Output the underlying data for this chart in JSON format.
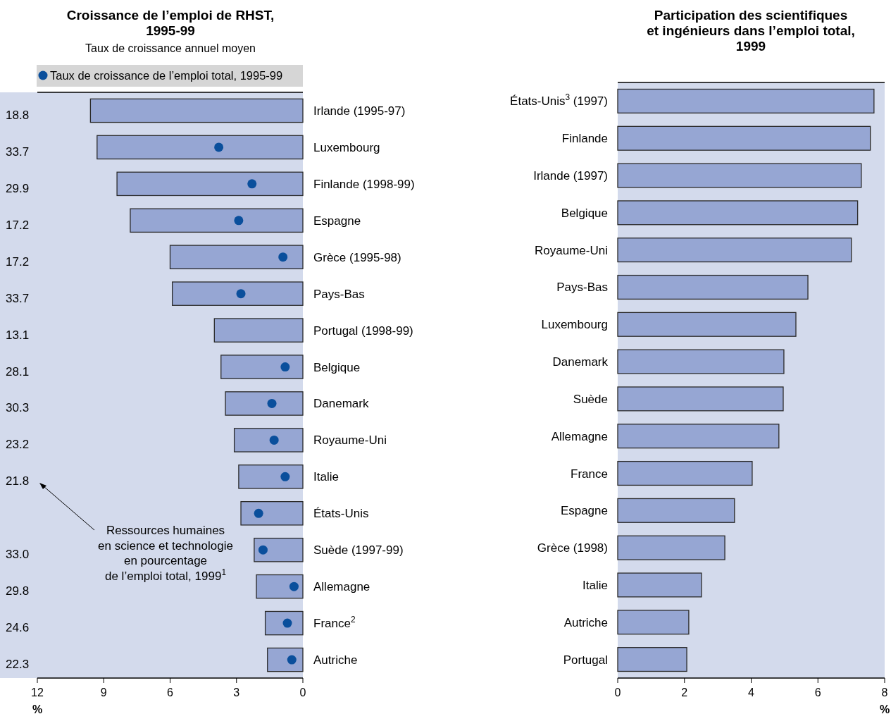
{
  "chart_data": [
    {
      "type": "bar",
      "orientation": "horizontal",
      "title": "Croissance de l’emploi de RHST,\n1995-99",
      "subtitle": "Taux de croissance annuel moyen",
      "xlabel": "%",
      "categories": [
        "Irlande (1995-97)",
        "Luxembourg",
        "Finlande (1998-99)",
        "Espagne",
        "Grèce (1995-98)",
        "Pays-Bas",
        "Portugal (1998-99)",
        "Belgique",
        "Danemark",
        "Royaume-Uni",
        "Italie",
        "États-Unis",
        "Suède (1997-99)",
        "Allemagne",
        "France$^{2}$",
        "Autriche"
      ],
      "series": [
        {
          "type": "bar",
          "color": "#96a6d3",
          "values": [
            9.6,
            9.3,
            8.4,
            7.8,
            6.0,
            5.9,
            4.0,
            3.7,
            3.5,
            3.1,
            2.9,
            2.8,
            2.2,
            2.1,
            1.7,
            1.6
          ]
        },
        {
          "type": "scatter",
          "name": "Taux de croissance de l’emploi total, 1995-99",
          "color": "#0a4f9c",
          "values": [
            null,
            3.8,
            2.3,
            2.9,
            0.9,
            2.8,
            null,
            0.8,
            1.4,
            1.3,
            0.8,
            2.0,
            1.8,
            0.4,
            0.7,
            0.5
          ]
        }
      ],
      "xlim": [
        12,
        0
      ],
      "xticks": [
        12,
        9,
        6,
        3,
        0
      ],
      "grid": false,
      "legend": "top",
      "marker": "circle",
      "annotations": [
        "Ressources humaines\nen science et technologie\nen pourcentage\nde l’emploi total, 1999$^{1}$",
        "18.8",
        "33.7",
        "29.9",
        "17.2",
        "17.2",
        "33.7",
        "13.1",
        "28.1",
        "30.3",
        "23.2",
        "21.8",
        "33.0",
        "29.8",
        "24.6",
        "22.3"
      ]
    },
    {
      "type": "bar",
      "orientation": "horizontal",
      "title": "Participation des scientifiques\net ingénieurs dans l’emploi total,\n1999",
      "xlabel": "%",
      "categories": [
        "États-Unis$^{3}$ (1997)",
        "Finlande",
        "Irlande (1997)",
        "Belgique",
        "Royaume-Uni",
        "Pays-Bas",
        "Luxembourg",
        "Danemark",
        "Suède",
        "Allemagne",
        "France",
        "Espagne",
        "Grèce (1998)",
        "Italie",
        "Autriche",
        "Portugal"
      ],
      "color": "#96a6d3",
      "values": [
        7.68,
        7.57,
        7.3,
        7.19,
        7.0,
        5.7,
        5.34,
        4.98,
        4.96,
        4.83,
        4.03,
        3.5,
        3.21,
        2.51,
        2.13,
        2.07
      ],
      "xlim": [
        0,
        8
      ],
      "xticks": [
        0,
        2,
        4,
        6,
        8
      ],
      "grid": false
    }
  ]
}
